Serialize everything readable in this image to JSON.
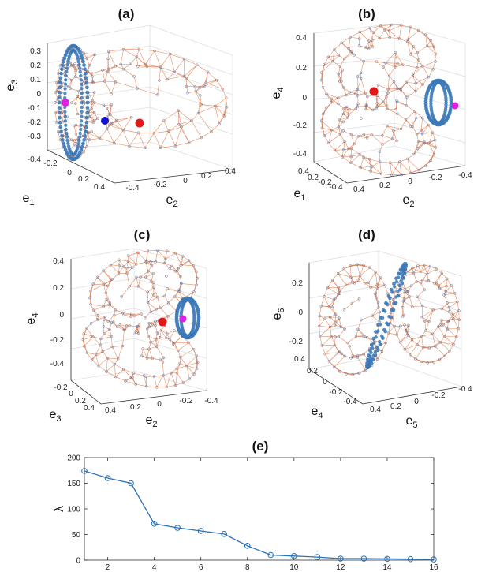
{
  "chart_data": [
    {
      "type": "scatter",
      "title": "(a)",
      "projection": "3d",
      "axes": [
        {
          "label": "e",
          "subscript": "1",
          "ticks": [
            "-0.4",
            "-0.2",
            "0",
            "0.2",
            "0.4"
          ]
        },
        {
          "label": "e",
          "subscript": "2",
          "ticks": [
            "-0.4",
            "-0.2",
            "0",
            "0.2",
            "0.4"
          ]
        },
        {
          "label": "e",
          "subscript": "3",
          "ticks": [
            "-0.4",
            "-0.3",
            "-0.2",
            "-0.1",
            "0",
            "0.1",
            "0.2",
            "0.3"
          ]
        }
      ],
      "zlim": [
        -0.4,
        0.35
      ],
      "grid": true,
      "mesh_color": "#E0703A",
      "node_color": "#3B78B8",
      "highlights": [
        {
          "color": "#E020E0"
        },
        {
          "color": "#1010D0"
        },
        {
          "color": "#E01818"
        }
      ]
    },
    {
      "type": "scatter",
      "title": "(b)",
      "projection": "3d",
      "axes": [
        {
          "label": "e",
          "subscript": "1",
          "ticks": [
            "0.4",
            "0.2",
            "0",
            "-0.2",
            "-0.4"
          ]
        },
        {
          "label": "e",
          "subscript": "2",
          "ticks": [
            "0.4",
            "0.2",
            "0",
            "-0.2",
            "-0.4"
          ]
        },
        {
          "label": "e",
          "subscript": "4",
          "ticks": [
            "-0.4",
            "-0.2",
            "0",
            "0.2",
            "0.4"
          ]
        }
      ],
      "grid": true,
      "mesh_color": "#E0703A",
      "node_color": "#3B78B8",
      "highlights": [
        {
          "color": "#E01818"
        },
        {
          "color": "#E020E0"
        }
      ]
    },
    {
      "type": "scatter",
      "title": "(c)",
      "projection": "3d",
      "axes": [
        {
          "label": "e",
          "subscript": "3",
          "ticks": [
            "-0.2",
            "0",
            "0.2",
            "0.4"
          ]
        },
        {
          "label": "e",
          "subscript": "2",
          "ticks": [
            "0.4",
            "0.2",
            "0",
            "-0.2",
            "-0.4"
          ]
        },
        {
          "label": "e",
          "subscript": "4",
          "ticks": [
            "-0.4",
            "-0.2",
            "0",
            "0.2",
            "0.4"
          ]
        }
      ],
      "grid": true,
      "mesh_color": "#E0703A",
      "node_color": "#3B78B8",
      "highlights": [
        {
          "color": "#E01818"
        },
        {
          "color": "#E020E0"
        }
      ]
    },
    {
      "type": "scatter",
      "title": "(d)",
      "projection": "3d",
      "axes": [
        {
          "label": "e",
          "subscript": "4",
          "ticks": [
            "0.4",
            "0.2",
            "0",
            "-0.2",
            "-0.4"
          ]
        },
        {
          "label": "e",
          "subscript": "5",
          "ticks": [
            "0.4",
            "0.2",
            "0",
            "-0.2",
            "-0.4"
          ]
        },
        {
          "label": "e",
          "subscript": "6",
          "ticks": [
            "-0.2",
            "0",
            "0.2"
          ]
        }
      ],
      "grid": true,
      "mesh_color": "#E0703A",
      "node_color": "#3B78B8",
      "highlights": []
    },
    {
      "type": "line",
      "title": "(e)",
      "xlabel": "",
      "ylabel": "λ",
      "x": [
        1,
        2,
        3,
        4,
        5,
        6,
        7,
        8,
        9,
        10,
        11,
        12,
        13,
        14,
        15,
        16
      ],
      "series": [
        {
          "values": [
            174,
            160,
            150,
            71,
            63,
            57,
            51,
            28,
            10,
            8,
            6,
            3,
            3,
            2.5,
            2,
            1.5
          ]
        }
      ],
      "xlim": [
        1,
        16
      ],
      "ylim": [
        0,
        200
      ],
      "xticks": [
        "2",
        "4",
        "6",
        "8",
        "10",
        "12",
        "14",
        "16"
      ],
      "yticks": [
        "0",
        "50",
        "100",
        "150",
        "200"
      ],
      "line_color": "#2A72B5",
      "marker": "circle-open",
      "grid": false
    }
  ]
}
